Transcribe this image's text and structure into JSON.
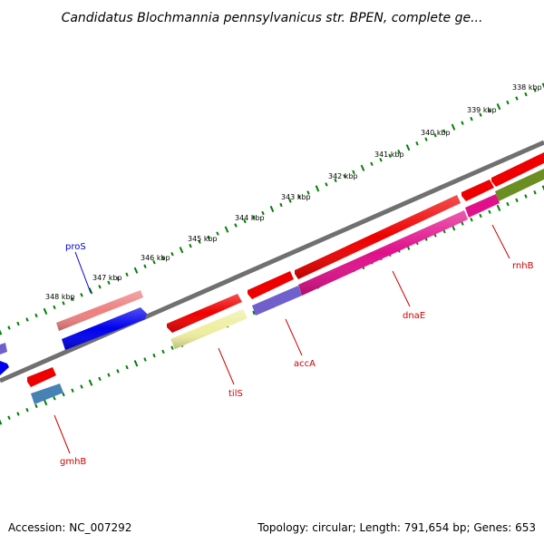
{
  "title": "Candidatus Blochmannia pennsylvanicus str. BPEN, complete ge...",
  "footer": {
    "accession": "Accession: NC_007292",
    "summary": "Topology: circular; Length: 791,654 bp; Genes: 653"
  },
  "scale_labels": [
    "338 kbp",
    "339 kbp",
    "340 kbp",
    "341 kbp",
    "342 kbp",
    "343 kbp",
    "344 kbp",
    "345 kbp",
    "346 kbp",
    "347 kbp",
    "348 kbp"
  ],
  "genes": [
    {
      "name": "proS",
      "color": "#0000cc"
    },
    {
      "name": "gmhB",
      "color": "#cc0000"
    },
    {
      "name": "tilS",
      "color": "#cc0000"
    },
    {
      "name": "accA",
      "color": "#cc0000"
    },
    {
      "name": "dnaE",
      "color": "#cc0000"
    },
    {
      "name": "rnhB",
      "color": "#cc0000"
    }
  ],
  "colors": {
    "backbone": "#808080",
    "ticks": "#008000",
    "cds_red": "#ee0000",
    "cds_blue": "#0000ee",
    "cds_pink": "#ee82a0",
    "cds_magenta": "#e0108a",
    "cds_purple": "#7060cc",
    "cds_olive": "#6b8e23",
    "cds_yellow": "#eeeea0",
    "cds_steel": "#4682b4"
  }
}
